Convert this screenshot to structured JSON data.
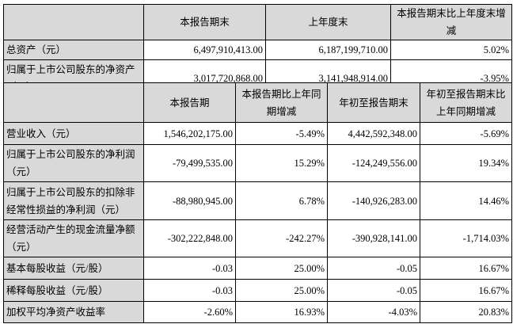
{
  "balance": {
    "headers": [
      "",
      "本报告期末",
      "上年度末",
      "本报告期末比上年度末增减"
    ],
    "rows": [
      {
        "label": "总资产（元）",
        "values": [
          "6,497,910,413.00",
          "6,187,199,710.00",
          "5.02%"
        ]
      },
      {
        "label": "归属于上市公司股东的净资产（元）",
        "values": [
          "3,017,720,868.00",
          "3,141,948,914.00",
          "-3.95%"
        ]
      }
    ]
  },
  "income": {
    "headers": [
      "",
      "本报告期",
      "本报告期比上年同期增减",
      "年初至报告期末",
      "年初至报告期末比上年同期增减"
    ],
    "rows": [
      {
        "label": "营业收入（元）",
        "values": [
          "1,546,202,175.00",
          "-5.49%",
          "4,442,592,348.00",
          "-5.69%"
        ]
      },
      {
        "label": "归属于上市公司股东的净利润（元）",
        "values": [
          "-79,499,535.00",
          "15.29%",
          "-124,249,556.00",
          "19.34%"
        ]
      },
      {
        "label": "归属于上市公司股东的扣除非经常性损益的净利润（元）",
        "values": [
          "-88,980,945.00",
          "6.78%",
          "-140,926,283.00",
          "14.46%"
        ]
      },
      {
        "label": "经营活动产生的现金流量净额（元）",
        "values": [
          "-302,222,848.00",
          "-242.27%",
          "-390,928,141.00",
          "-1,714.03%"
        ]
      },
      {
        "label": "基本每股收益（元/股）",
        "values": [
          "-0.03",
          "25.00%",
          "-0.05",
          "16.67%"
        ]
      },
      {
        "label": "稀释每股收益（元/股）",
        "values": [
          "-0.03",
          "25.00%",
          "-0.05",
          "16.67%"
        ]
      },
      {
        "label": "加权平均净资产收益率",
        "values": [
          "-2.60%",
          "16.93%",
          "-4.03%",
          "20.83%"
        ]
      }
    ]
  }
}
